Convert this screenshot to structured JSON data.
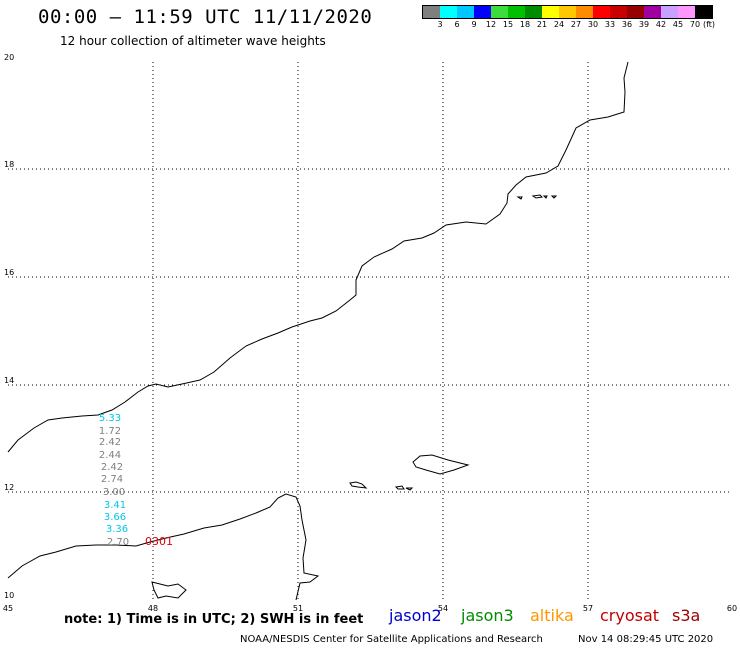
{
  "header": {
    "title": "00:00 – 11:59 UTC 11/11/2020",
    "subtitle": "12 hour collection of altimeter wave heights"
  },
  "legend": {
    "unit_label": "(ft)",
    "bins": [
      {
        "label": "3",
        "color": "#7f7f7f"
      },
      {
        "label": "6",
        "color": "#00ffff"
      },
      {
        "label": "9",
        "color": "#00c8ff"
      },
      {
        "label": "12",
        "color": "#0000ff"
      },
      {
        "label": "15",
        "color": "#3cdc3c"
      },
      {
        "label": "18",
        "color": "#00c000"
      },
      {
        "label": "21",
        "color": "#008c00"
      },
      {
        "label": "24",
        "color": "#ffff00"
      },
      {
        "label": "27",
        "color": "#ffc800"
      },
      {
        "label": "30",
        "color": "#ff8c00"
      },
      {
        "label": "33",
        "color": "#ff0000"
      },
      {
        "label": "36",
        "color": "#c80000"
      },
      {
        "label": "39",
        "color": "#960000"
      },
      {
        "label": "42",
        "color": "#a000a0"
      },
      {
        "label": "45",
        "color": "#c8a0ff"
      },
      {
        "label": "70",
        "color": "#ff96ff"
      },
      {
        "label": "",
        "color": "#000000"
      }
    ]
  },
  "map": {
    "lon_ticks": [
      "45",
      "48",
      "51",
      "54",
      "57",
      "60"
    ],
    "lat_ticks": [
      "10",
      "12",
      "14",
      "16",
      "18",
      "20"
    ],
    "observations": [
      {
        "value": "5.33",
        "color": "#00c8e6"
      },
      {
        "value": "1.72",
        "color": "#808080"
      },
      {
        "value": "2.42",
        "color": "#808080"
      },
      {
        "value": "2.44",
        "color": "#808080"
      },
      {
        "value": "2.42",
        "color": "#808080"
      },
      {
        "value": "2.74",
        "color": "#808080"
      },
      {
        "value": "3.00",
        "color": "#808080"
      },
      {
        "value": "3.41",
        "color": "#00c8e6"
      },
      {
        "value": "3.66",
        "color": "#00c8e6"
      },
      {
        "value": "3.36",
        "color": "#00c8e6"
      },
      {
        "value": "2.70",
        "color": "#808080"
      }
    ],
    "pass_label": {
      "value": "0301",
      "color": "#e00000"
    }
  },
  "footer": {
    "note": "note: 1) Time is in UTC; 2) SWH is in feet",
    "satellites": [
      {
        "name": "jason2",
        "color": "#0000d0"
      },
      {
        "name": "jason3",
        "color": "#008c00"
      },
      {
        "name": "altika",
        "color": "#ff9600"
      },
      {
        "name": "cryosat",
        "color": "#c00000"
      },
      {
        "name": "s3a",
        "color": "#a00000"
      }
    ],
    "credit": "NOAA/NESDIS Center for Satellite Applications and Research",
    "generated": "Nov 14 08:29:45 UTC 2020"
  }
}
